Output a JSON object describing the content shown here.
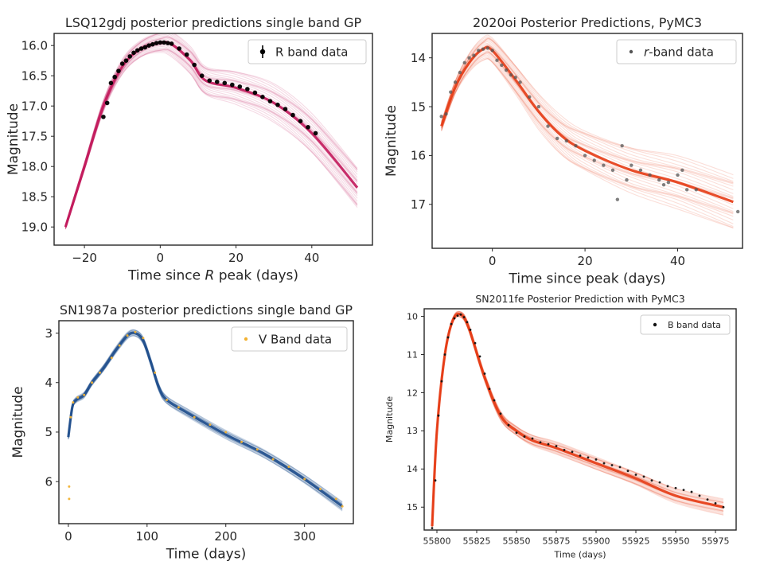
{
  "chart_data": [
    {
      "type": "scatter",
      "title": "LSQ12gdj posterior predictions single band GP",
      "xlabel": "Time since R peak (days)",
      "xlabel_parts": [
        "Time since ",
        "R",
        " peak (days)"
      ],
      "ylabel": "Magnitude",
      "xlim": [
        -28,
        56
      ],
      "ylim": [
        19.3,
        15.8
      ],
      "y_inverted": true,
      "xticks": [
        -20,
        0,
        20,
        40
      ],
      "xtick_labels": [
        "−20",
        "0",
        "20",
        "40"
      ],
      "yticks": [
        16.0,
        16.5,
        17.0,
        17.5,
        18.0,
        18.5,
        19.0
      ],
      "ytick_labels": [
        "16.0",
        "16.5",
        "17.0",
        "17.5",
        "18.0",
        "18.5",
        "19.0"
      ],
      "legend": {
        "label": "R band data",
        "placement": "top-right",
        "marker": "errorbar-point"
      },
      "grid": false,
      "colors": {
        "band": "#c2185b",
        "points": "#000000"
      },
      "model": {
        "x": [
          -25,
          -20,
          -15,
          -10,
          -5,
          0,
          3,
          8,
          12,
          20,
          30,
          40,
          52
        ],
        "y": [
          19.0,
          18.0,
          17.0,
          16.35,
          16.05,
          15.95,
          15.98,
          16.25,
          16.58,
          16.7,
          16.95,
          17.45,
          18.35
        ],
        "spread_start": 0.04,
        "spread_end": 0.35
      },
      "series": [
        {
          "name": "R band data",
          "x": [
            -15,
            -14,
            -13,
            -12,
            -11,
            -10,
            -9,
            -8,
            -7,
            -6,
            -5,
            -4,
            -3,
            -2,
            -1,
            0,
            1,
            2,
            3,
            5,
            7,
            9,
            11,
            13,
            15,
            17,
            19,
            21,
            23,
            25,
            27,
            29,
            31,
            33,
            35,
            37,
            39,
            41
          ],
          "y": [
            17.18,
            16.95,
            16.62,
            16.52,
            16.42,
            16.3,
            16.25,
            16.18,
            16.12,
            16.08,
            16.05,
            16.03,
            16.0,
            15.98,
            15.96,
            15.95,
            15.95,
            15.96,
            15.97,
            16.05,
            16.15,
            16.32,
            16.5,
            16.58,
            16.6,
            16.62,
            16.65,
            16.68,
            16.72,
            16.78,
            16.85,
            16.92,
            16.98,
            17.05,
            17.15,
            17.25,
            17.35,
            17.45
          ]
        }
      ]
    },
    {
      "type": "scatter",
      "title": "2020oi Posterior Predictions, PyMC3",
      "xlabel": "Time since peak (days)",
      "ylabel": "Magnitude",
      "xlim": [
        -13,
        54
      ],
      "ylim": [
        17.9,
        13.5
      ],
      "y_inverted": true,
      "xticks": [
        0,
        20,
        40
      ],
      "xtick_labels": [
        "0",
        "20",
        "40"
      ],
      "yticks": [
        14,
        15,
        16,
        17
      ],
      "ytick_labels": [
        "14",
        "15",
        "16",
        "17"
      ],
      "legend": {
        "label": "r-band data",
        "label_parts": [
          "r",
          "-band data"
        ],
        "placement": "top-right",
        "marker": "point"
      },
      "grid": false,
      "colors": {
        "band": "#e53b14",
        "points": "#555555"
      },
      "model": {
        "x": [
          -11,
          -8,
          -5,
          -2,
          0,
          5,
          10,
          15,
          20,
          30,
          40,
          52
        ],
        "y": [
          15.4,
          14.6,
          14.1,
          13.82,
          13.85,
          14.45,
          15.1,
          15.6,
          15.9,
          16.3,
          16.55,
          16.95
        ],
        "spread_start": 0.1,
        "spread_end": 0.55
      },
      "series": [
        {
          "name": "r-band data",
          "x": [
            -11,
            -10,
            -9,
            -8,
            -7,
            -6,
            -5,
            -4,
            -3,
            -2,
            -1,
            0,
            1,
            2,
            3,
            4,
            5,
            6,
            8,
            10,
            12,
            14,
            16,
            18,
            20,
            22,
            24,
            26,
            27,
            28,
            29,
            30,
            32,
            34,
            36,
            37,
            38,
            40,
            41,
            42,
            44,
            53
          ],
          "y": [
            15.2,
            15.15,
            14.7,
            14.5,
            14.3,
            14.1,
            14.0,
            13.95,
            13.85,
            13.82,
            13.8,
            13.85,
            14.05,
            14.15,
            14.25,
            14.35,
            14.4,
            14.5,
            14.8,
            15.0,
            15.4,
            15.65,
            15.7,
            15.8,
            16.0,
            16.1,
            16.2,
            16.3,
            16.9,
            15.8,
            16.5,
            16.2,
            16.3,
            16.4,
            16.5,
            16.6,
            16.55,
            16.4,
            16.3,
            16.7,
            16.7,
            17.15
          ]
        }
      ]
    },
    {
      "type": "scatter",
      "title": "SN1987a posterior predictions single band GP",
      "xlabel": "Time (days)",
      "ylabel": "Magnitude",
      "xlim": [
        -12,
        362
      ],
      "ylim": [
        6.85,
        2.75
      ],
      "y_inverted": true,
      "xticks": [
        0,
        100,
        200,
        300
      ],
      "xtick_labels": [
        "0",
        "100",
        "200",
        "300"
      ],
      "yticks": [
        3,
        4,
        5,
        6
      ],
      "ytick_labels": [
        "3",
        "4",
        "5",
        "6"
      ],
      "legend": {
        "label": "V Band data",
        "placement": "top-right",
        "marker": "point"
      },
      "grid": false,
      "colors": {
        "band": "#1f4e8c",
        "points": "#f2b233"
      },
      "model": {
        "x": [
          0,
          5,
          10,
          20,
          30,
          45,
          60,
          75,
          85,
          95,
          105,
          115,
          125,
          150,
          200,
          250,
          300,
          348
        ],
        "y": [
          5.1,
          4.5,
          4.35,
          4.25,
          4.0,
          3.7,
          3.35,
          3.05,
          3.0,
          3.15,
          3.6,
          4.1,
          4.35,
          4.6,
          5.05,
          5.45,
          5.95,
          6.5
        ],
        "spread_start": 0.05,
        "spread_end": 0.09
      },
      "series": [
        {
          "name": "V Band data",
          "x": [
            1,
            1,
            3,
            6,
            12,
            20,
            30,
            40,
            55,
            65,
            75,
            85,
            95,
            110,
            125,
            140,
            160,
            180,
            200,
            220,
            240,
            260,
            280,
            300,
            320,
            340,
            348
          ],
          "y": [
            6.1,
            6.35,
            4.7,
            4.4,
            4.3,
            4.25,
            4.0,
            3.8,
            3.5,
            3.25,
            3.05,
            2.98,
            3.1,
            3.8,
            4.35,
            4.5,
            4.7,
            4.85,
            5.0,
            5.2,
            5.35,
            5.55,
            5.7,
            5.95,
            6.15,
            6.35,
            6.5
          ]
        }
      ]
    },
    {
      "type": "scatter",
      "title": "SN2011fe Posterior Prediction with PyMC3",
      "xlabel": "Time (days)",
      "ylabel": "Magnitude",
      "xlim": [
        55792,
        55988
      ],
      "ylim": [
        15.6,
        9.8
      ],
      "y_inverted": true,
      "xticks": [
        55800,
        55825,
        55850,
        55875,
        55900,
        55925,
        55950,
        55975
      ],
      "xtick_labels": [
        "55800",
        "55825",
        "55850",
        "55875",
        "55900",
        "55925",
        "55950",
        "55975"
      ],
      "yticks": [
        10,
        11,
        12,
        13,
        14,
        15
      ],
      "ytick_labels": [
        "10",
        "11",
        "12",
        "13",
        "14",
        "15"
      ],
      "legend": {
        "label": "B band data",
        "placement": "top-right",
        "marker": "point"
      },
      "grid": false,
      "colors": {
        "band": "#e53b14",
        "points": "#111111"
      },
      "model": {
        "x": [
          55797,
          55800,
          55805,
          55810,
          55815,
          55820,
          55830,
          55840,
          55850,
          55860,
          55875,
          55900,
          55925,
          55950,
          55980
        ],
        "y": [
          15.5,
          13.0,
          11.0,
          10.1,
          9.95,
          10.3,
          11.6,
          12.6,
          13.0,
          13.25,
          13.45,
          13.85,
          14.25,
          14.7,
          15.0
        ],
        "spread_start": 0.03,
        "spread_end": 0.2
      },
      "series": [
        {
          "name": "B band data",
          "x": [
            55797,
            55799,
            55801,
            55803,
            55805,
            55807,
            55809,
            55811,
            55813,
            55815,
            55817,
            55819,
            55821,
            55824,
            55827,
            55830,
            55833,
            55836,
            55840,
            55845,
            55850,
            55855,
            55860,
            55865,
            55870,
            55875,
            55880,
            55885,
            55890,
            55895,
            55900,
            55905,
            55910,
            55915,
            55920,
            55925,
            55930,
            55935,
            55940,
            55945,
            55950,
            55955,
            55960,
            55965,
            55970,
            55975,
            55980
          ],
          "y": [
            15.55,
            14.3,
            12.6,
            11.7,
            11.0,
            10.55,
            10.2,
            10.05,
            9.98,
            9.95,
            10.02,
            10.15,
            10.35,
            10.7,
            11.05,
            11.5,
            11.9,
            12.2,
            12.55,
            12.85,
            13.05,
            13.15,
            13.2,
            13.3,
            13.35,
            13.4,
            13.5,
            13.55,
            13.65,
            13.7,
            13.75,
            13.85,
            13.9,
            13.95,
            14.05,
            14.15,
            14.2,
            14.3,
            14.35,
            14.45,
            14.5,
            14.55,
            14.6,
            14.7,
            14.8,
            14.9,
            15.0
          ]
        }
      ]
    }
  ]
}
